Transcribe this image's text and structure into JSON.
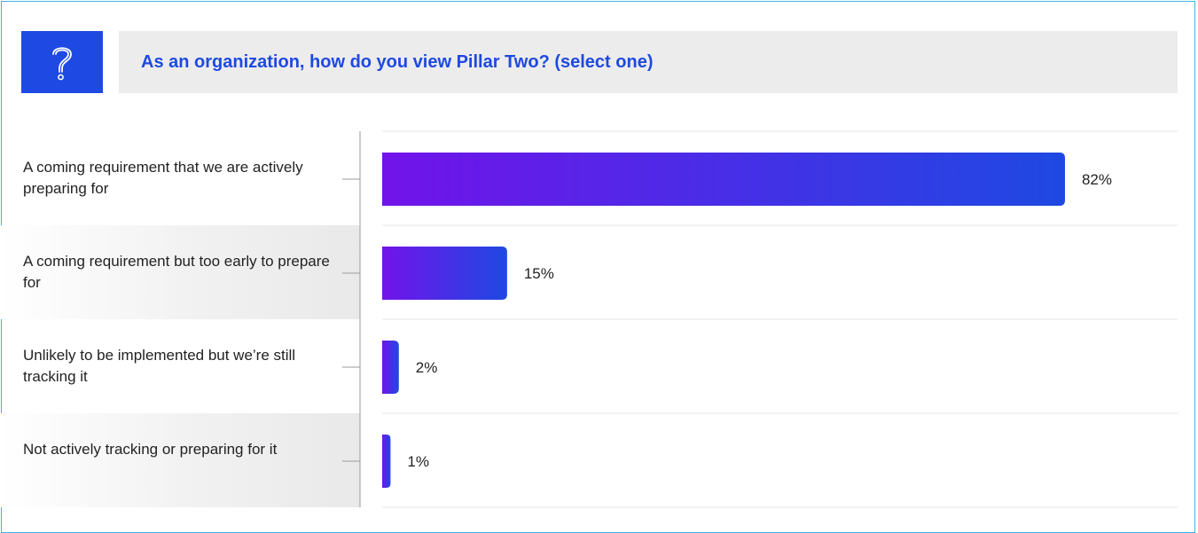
{
  "question_icon": "question-mark-icon",
  "title": "As an organization, how do you view Pillar Two? (select one)",
  "colors": {
    "accent": "#1e49e2",
    "bar_start": "#7213ea",
    "bar_end": "#1e49e2",
    "title_background": "#ececec",
    "frame_border": "#3fb3e0"
  },
  "chart_data": {
    "type": "bar",
    "orientation": "horizontal",
    "title": "As an organization, how do you view Pillar Two? (select one)",
    "categories": [
      "A coming requirement that we are actively preparing for",
      "A coming requirement but too early to prepare for",
      "Unlikely to be implemented but we’re still tracking it",
      "Not actively tracking or preparing for it"
    ],
    "values": [
      82,
      15,
      2,
      1
    ],
    "value_labels": [
      "82%",
      "15%",
      "2%",
      "1%"
    ],
    "unit": "%",
    "xlim": [
      0,
      100
    ],
    "grid": true,
    "legend": "none"
  }
}
